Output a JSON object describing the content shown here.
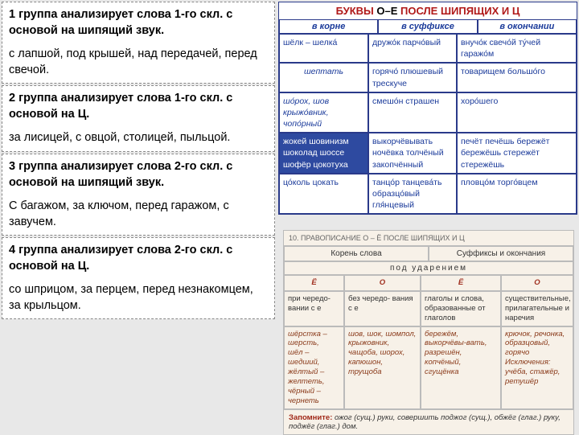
{
  "groups": [
    {
      "title": "1 группа анализирует слова 1-го скл. с основой на шипящий звук.",
      "ex": "с лапшой, под крышей, над передачей, перед свечой."
    },
    {
      "title": "2 группа анализирует слова 1-го скл. с основой на Ц.",
      "ex": "за лисицей, с овцой, столицей, пыльцой."
    },
    {
      "title": "3 группа анализирует слова 2-го скл. с основой на шипящий звук.",
      "ex": "С багажом, за ключом, перед гаражом, с завучем."
    },
    {
      "title": "4 группа анализирует слова 2-го скл. с основой на Ц.",
      "ex": "со шприцом, за перцем, перед незнакомцем, за крыльцом."
    }
  ],
  "tr": {
    "title_pre": "БУКВЫ ",
    "title_oe": "О–Е",
    "title_post": " ПОСЛЕ ШИПЯЩИХ И Ц",
    "heads": [
      "в корне",
      "в суффиксе",
      "в окончании"
    ],
    "r1c1": "шёлк – шелка́",
    "r1c2": "дружо́к парчо́вый",
    "r1c3": "внучо́к  свечо́й  ту́чей гаражо́м",
    "r2c1": "шептать",
    "r2c2": "горячо́ плюшевый трескуче",
    "r2c3": "товарищем большо́го",
    "r3c1": "шо́рох, шов крыжо́вник, чопо́рный",
    "r3c2": "смешо́н  страшен",
    "r3c3": "хоро́шего",
    "r4c1": "жокей шовинизм шоколад шоссе шофёр цокотуха",
    "r4c2": "выкорчёвывать ночёвка толчёный закопчённый",
    "r4c3": "печёт  печёшь бережёт бережёшь стережёт стережёшь",
    "r5c1": "цо́коль        цокать",
    "r5c2": "танцо́р  танцева́ть образцо́вый  гля́нцевый",
    "r5c3": "пловцо́м торго́вцем"
  },
  "br": {
    "title": "10. ПРАВОПИСАНИЕ  О – Ё  ПОСЛЕ  ШИПЯЩИХ  И  Ц",
    "h1": [
      "Корень слова",
      "Суффиксы и окончания"
    ],
    "h2": "под   ударением",
    "cols": [
      "Ё",
      "О",
      "Ё",
      "О"
    ],
    "d1": "при чередо-\nвании с е",
    "d2": "без чередо-\nвания с е",
    "d3": "глаголы и слова, образованные от глаголов",
    "d4": "существительные, прилагательные и наречия",
    "e1": "шёрстка – шерсть,\nшёл – шедший,\nжёлтый – желтеть,\nчёрный – чернеть",
    "e2": "шов, шок, шомпол, крыжовник, чащоба, шорох, капюшон, трущоба",
    "e3": "бережём, выкорчёвы-вать, разрешён, копчёный, сгущёнка",
    "e4": "крючок, речонка, образцовый, горячо\nИсключения: учёба, стажёр, ретушёр",
    "foot_label": "Запомните: ",
    "foot": "ожог (сущ.) руки, совершить поджог (сущ.), обжёг (глаг.) руку, поджёг (глаг.) дом."
  }
}
